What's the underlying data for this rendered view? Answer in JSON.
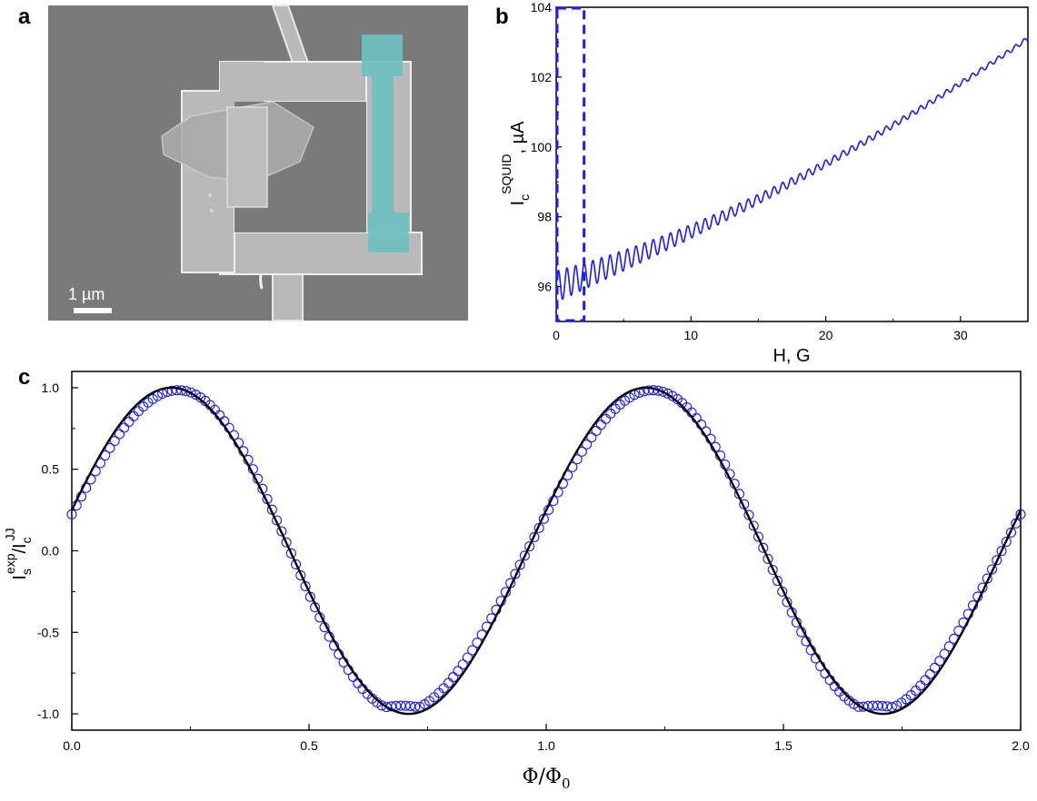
{
  "panels": {
    "a": "a",
    "b": "b",
    "c": "c"
  },
  "sem_image": {
    "description_free": true,
    "scale_bar_label": "1 µm",
    "colors": {
      "background": "#7a7a7a",
      "metal": "#b9b9b9",
      "edge": "#efefef",
      "highlight": "#6fbfc0"
    }
  },
  "chart_data": [
    {
      "id": "b",
      "type": "line",
      "xlabel": "H, G",
      "ylabel": {
        "main": "I",
        "sub": "c",
        "sup": "SQUID",
        "unit": ", µA"
      },
      "xlim": [
        0,
        35
      ],
      "ylim": [
        95,
        104
      ],
      "xticks": [
        "0",
        "10",
        "20",
        "30"
      ],
      "yticks": [
        "96",
        "98",
        "100",
        "102",
        "104"
      ],
      "series": [
        {
          "model": "96 + 0.2*H + 0.0015*H^2 - amplitude decaying oscillation",
          "x_start": 0,
          "x_end": 35,
          "y_start": 96.0,
          "y_end": 103.1,
          "osc_period_G": 0.64,
          "osc_amp_start": 0.4,
          "osc_amp_end": 0.05
        }
      ],
      "highlight_box": {
        "x": [
          0,
          2
        ],
        "y": [
          95,
          104
        ],
        "style": "dashed",
        "color": "#1a1aff"
      },
      "color": "#1a1aff"
    },
    {
      "id": "c",
      "type": "scatter",
      "xlabel": {
        "main": "Φ/Φ",
        "sub": "0"
      },
      "ylabel": {
        "p1": "I",
        "s1": "s",
        "e1": "exp",
        "p2": "/I",
        "s2": "c",
        "e2": "JJ"
      },
      "xlim": [
        0,
        2
      ],
      "ylim": [
        -1.1,
        1.1
      ],
      "xticks": [
        "0.0",
        "0.5",
        "1.0",
        "1.5",
        "2.0"
      ],
      "yticks": [
        "1.0",
        "0.5",
        "0.0",
        "-0.5",
        "-1.0"
      ],
      "series": [
        {
          "name": "",
          "kind": "fit-line",
          "function": "sin(2*pi*(x + 0.04))",
          "color": "#000000"
        },
        {
          "name": "",
          "kind": "markers",
          "function": "sin(2*pi*(x + 0.04)) distorted",
          "n_points": 200,
          "color": "#1a1aff"
        }
      ]
    }
  ]
}
